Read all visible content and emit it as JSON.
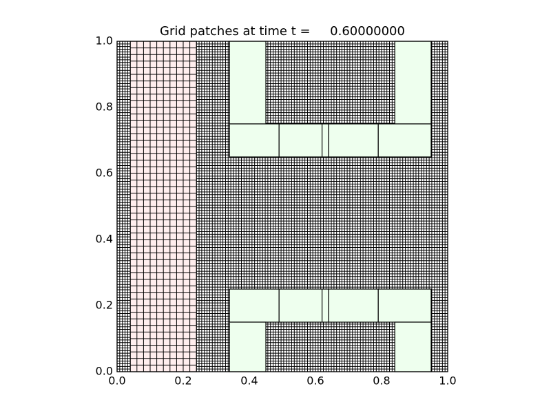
{
  "chart_data": {
    "type": "patches",
    "title": "Grid patches at time t =     0.60000000",
    "xlim": [
      0,
      1
    ],
    "ylim": [
      0,
      1
    ],
    "xticks": [
      {
        "value": 0,
        "label": "0.0"
      },
      {
        "value": 0.2,
        "label": "0.2"
      },
      {
        "value": 0.4,
        "label": "0.4"
      },
      {
        "value": 0.6,
        "label": "0.6"
      },
      {
        "value": 0.8,
        "label": "0.8"
      },
      {
        "value": 1,
        "label": "1.0"
      }
    ],
    "yticks": [
      {
        "value": 0,
        "label": "0.0"
      },
      {
        "value": 0.2,
        "label": "0.2"
      },
      {
        "value": 0.4,
        "label": "0.4"
      },
      {
        "value": 0.6,
        "label": "0.6"
      },
      {
        "value": 0.8,
        "label": "0.8"
      },
      {
        "value": 1,
        "label": "1.0"
      }
    ],
    "patches": [
      {
        "x": [
          0,
          1
        ],
        "y": [
          0,
          1
        ],
        "dx": 0.008,
        "color": "#ffffff"
      },
      {
        "x": [
          0.04,
          0.24
        ],
        "y": [
          0,
          1
        ],
        "dx": 0.02,
        "color": "#ffeeee"
      },
      {
        "x": [
          0.34,
          0.45
        ],
        "y": [
          0.75,
          1
        ],
        "color": "#eeffee"
      },
      {
        "x": [
          0.84,
          0.95
        ],
        "y": [
          0.75,
          1
        ],
        "color": "#eeffee"
      },
      {
        "x": [
          0.34,
          0.49
        ],
        "y": [
          0.65,
          0.75
        ],
        "color": "#eeffee"
      },
      {
        "x": [
          0.49,
          0.62
        ],
        "y": [
          0.65,
          0.75
        ],
        "color": "#eeffee"
      },
      {
        "x": [
          0.62,
          0.64
        ],
        "y": [
          0.65,
          0.75
        ],
        "color": "#eeffee"
      },
      {
        "x": [
          0.64,
          0.79
        ],
        "y": [
          0.65,
          0.75
        ],
        "color": "#eeffee"
      },
      {
        "x": [
          0.79,
          0.95
        ],
        "y": [
          0.65,
          0.75
        ],
        "color": "#eeffee"
      },
      {
        "x": [
          0.34,
          0.49
        ],
        "y": [
          0.15,
          0.25
        ],
        "color": "#eeffee"
      },
      {
        "x": [
          0.49,
          0.62
        ],
        "y": [
          0.15,
          0.25
        ],
        "color": "#eeffee"
      },
      {
        "x": [
          0.62,
          0.64
        ],
        "y": [
          0.15,
          0.25
        ],
        "color": "#eeffee"
      },
      {
        "x": [
          0.64,
          0.79
        ],
        "y": [
          0.15,
          0.25
        ],
        "color": "#eeffee"
      },
      {
        "x": [
          0.79,
          0.95
        ],
        "y": [
          0.15,
          0.25
        ],
        "color": "#eeffee"
      },
      {
        "x": [
          0.34,
          0.45
        ],
        "y": [
          0,
          0.15
        ],
        "color": "#eeffee"
      },
      {
        "x": [
          0.84,
          0.95
        ],
        "y": [
          0,
          0.15
        ],
        "color": "#eeffee"
      }
    ]
  }
}
